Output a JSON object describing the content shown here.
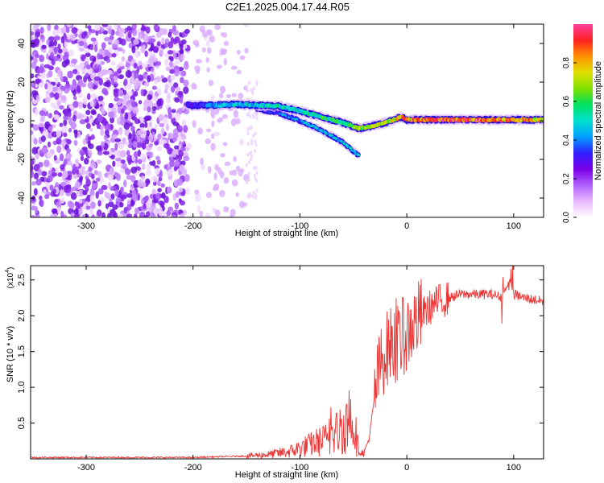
{
  "title": "C2E1.2025.004.17.44.R05",
  "colors": {
    "snr_line": "#ee3333",
    "frame": "#000000",
    "colormap": [
      "#ffffff",
      "#e8b8ff",
      "#b060ff",
      "#7a00e6",
      "#3020ff",
      "#00a0ff",
      "#00e0d0",
      "#00e060",
      "#80e000",
      "#e0e000",
      "#ff9000",
      "#ff2020",
      "#ff40a0"
    ]
  },
  "chart_data": [
    {
      "type": "heatmap",
      "xlabel": "Height of straight line (km)",
      "ylabel": "Frequency (Hz)",
      "xlim": [
        -352,
        128
      ],
      "ylim": [
        -50,
        50
      ],
      "xticks": [
        -300,
        -200,
        -100,
        0,
        100
      ],
      "xtick_labels": [
        "-300",
        "-200",
        "-100",
        "0",
        "100"
      ],
      "yticks": [
        -40,
        -20,
        0,
        20,
        40
      ],
      "ytick_labels": [
        "-40",
        "-20",
        "0",
        "20",
        "40"
      ],
      "colorbar": {
        "label": "Normalized spectral amplitude",
        "range": [
          0,
          1
        ],
        "ticks": [
          0.0,
          0.2,
          0.4,
          0.6,
          0.8
        ],
        "tick_labels": [
          "0.0",
          "0.2",
          "0.4",
          "0.6",
          "0.8"
        ]
      },
      "features": {
        "noise_region_x": [
          -352,
          -150
        ],
        "primary_trace": {
          "x": [
            -205,
            -180,
            -160,
            -140,
            -120,
            -100,
            -80,
            -60,
            -45,
            -35,
            -20,
            -5,
            0,
            10,
            30,
            60,
            90,
            128
          ],
          "freq": [
            8,
            8,
            8.5,
            8,
            7.5,
            5,
            2,
            -1,
            -4,
            -3,
            -1,
            2,
            0.5,
            0.5,
            0.5,
            0.5,
            0.5,
            0.5
          ],
          "amplitude": [
            0.3,
            0.45,
            0.5,
            0.5,
            0.55,
            0.55,
            0.6,
            0.6,
            0.7,
            0.7,
            0.75,
            0.85,
            0.9,
            0.95,
            0.95,
            0.95,
            0.9,
            0.85
          ]
        },
        "secondary_trace": {
          "x": [
            -140,
            -120,
            -100,
            -80,
            -60,
            -45
          ],
          "freq": [
            6,
            4,
            0,
            -5,
            -11,
            -18
          ],
          "amplitude": [
            0.3,
            0.4,
            0.45,
            0.5,
            0.5,
            0.5
          ]
        }
      }
    },
    {
      "type": "line",
      "xlabel": "Height of straight line (km)",
      "ylabel": "SNR (10 * v/v)",
      "scale_label": "(x10",
      "scale_exponent": "4",
      "xlim": [
        -352,
        128
      ],
      "ylim": [
        0,
        2.7
      ],
      "xticks": [
        -300,
        -200,
        -100,
        0,
        100
      ],
      "xtick_labels": [
        "-300",
        "-200",
        "-100",
        "0",
        "100"
      ],
      "yticks": [
        0.5,
        1.0,
        1.5,
        2.0,
        2.5
      ],
      "ytick_labels": [
        "0.5",
        "1.0",
        "1.5",
        "2.0",
        "2.5"
      ],
      "series": [
        {
          "x": [
            -352,
            -300,
            -250,
            -200,
            -175,
            -150,
            -130,
            -110,
            -100,
            -90,
            -80,
            -70,
            -60,
            -50,
            -45,
            -40,
            -35,
            -30,
            -25,
            -20,
            -15,
            -10,
            -5,
            0,
            5,
            10,
            20,
            30,
            40,
            50,
            60,
            70,
            80,
            90,
            95,
            100,
            110,
            128
          ],
          "y": [
            0.02,
            0.02,
            0.02,
            0.02,
            0.03,
            0.04,
            0.06,
            0.1,
            0.15,
            0.2,
            0.25,
            0.3,
            0.45,
            0.55,
            0.1,
            0.08,
            0.3,
            0.9,
            1.3,
            1.5,
            1.6,
            1.6,
            1.7,
            1.75,
            1.85,
            1.95,
            2.1,
            2.2,
            2.25,
            2.3,
            2.3,
            2.3,
            2.3,
            2.25,
            2.5,
            2.3,
            2.25,
            2.2
          ]
        }
      ]
    }
  ]
}
